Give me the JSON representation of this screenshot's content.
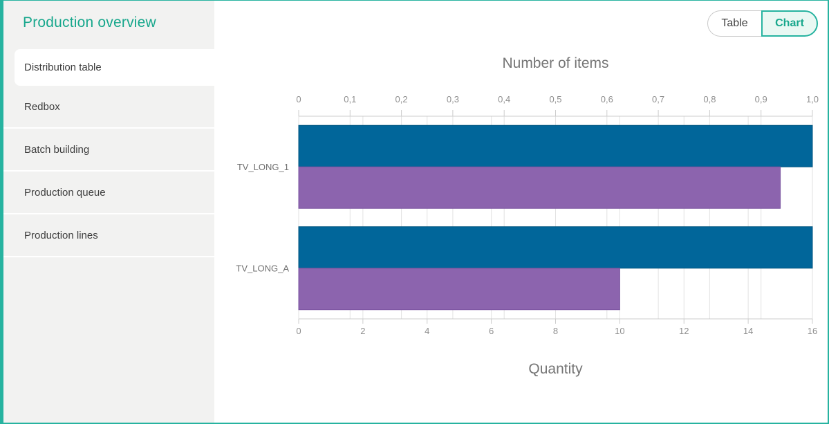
{
  "colors": {
    "accent": "#27b3a0",
    "accent_text": "#17a78c",
    "chart_btn_bg": "#e9f8f3",
    "sidebar_bg": "#f2f2f1",
    "bar_blue": "#01669a",
    "bar_purple": "#8c64ae",
    "grid_line": "#e2e2e2",
    "axis_line": "#cccccc",
    "tick_label": "#8f8f8f",
    "category_label": "#6e6e6e",
    "axis_title": "#757575"
  },
  "sidebar": {
    "title": "Production overview",
    "items": [
      {
        "label": "Distribution table",
        "active": true
      },
      {
        "label": "Redbox",
        "active": false
      },
      {
        "label": "Batch building",
        "active": false
      },
      {
        "label": "Production queue",
        "active": false
      },
      {
        "label": "Production lines",
        "active": false
      }
    ]
  },
  "toolbar": {
    "table_label": "Table",
    "chart_label": "Chart"
  },
  "chart_data": {
    "type": "bar",
    "orientation": "horizontal",
    "categories": [
      "TV_LONG_1",
      "TV_LONG_A"
    ],
    "series": [
      {
        "name": "Number of items",
        "axis": "top",
        "color": "#01669a",
        "stroke": "#015580",
        "values": [
          1.0,
          1.0
        ]
      },
      {
        "name": "Quantity",
        "axis": "bottom",
        "color": "#8c64ae",
        "stroke": "#7b55a0",
        "values": [
          15,
          10
        ]
      }
    ],
    "top_axis": {
      "title": "Number of items",
      "min": 0,
      "max": 1,
      "ticks": [
        "0",
        "0,1",
        "0,2",
        "0,3",
        "0,4",
        "0,5",
        "0,6",
        "0,7",
        "0,8",
        "0,9",
        "1,0"
      ]
    },
    "bottom_axis": {
      "title": "Quantity",
      "min": 0,
      "max": 16,
      "ticks": [
        "0",
        "2",
        "4",
        "6",
        "8",
        "10",
        "12",
        "14",
        "16"
      ]
    },
    "grid": true,
    "legend": false
  }
}
